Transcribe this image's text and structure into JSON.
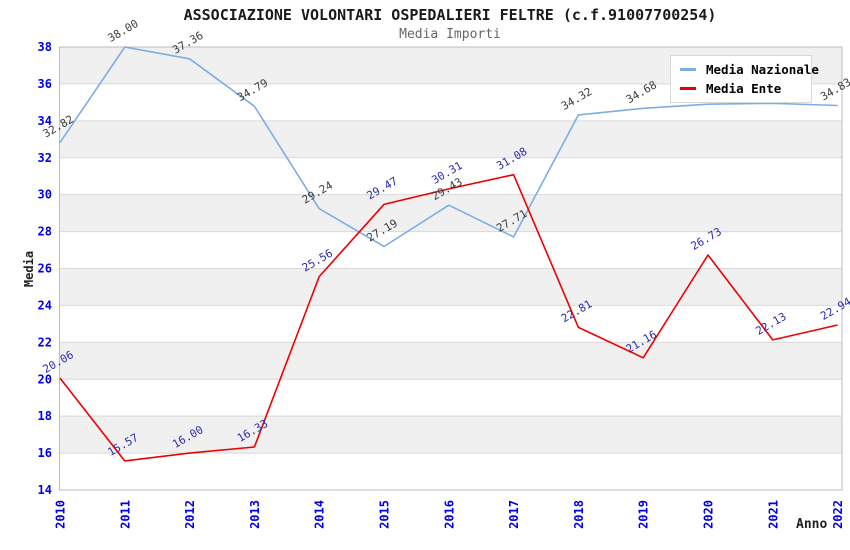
{
  "header": {
    "title": "ASSOCIAZIONE VOLONTARI OSPEDALIERI FELTRE (c.f.91007700254)",
    "subtitle": "Media Importi"
  },
  "axes": {
    "x_label": "Anno",
    "y_label": "Media",
    "x_tick_labels": [
      "2010",
      "2011",
      "2012",
      "2013",
      "2014",
      "2015",
      "2016",
      "2017",
      "2018",
      "2019",
      "2020",
      "2021",
      "2022"
    ],
    "y_tick_labels": [
      "14",
      "16",
      "18",
      "20",
      "22",
      "24",
      "26",
      "28",
      "30",
      "32",
      "34",
      "36",
      "38"
    ],
    "tick_color": "#0000EE"
  },
  "legend": {
    "position": "top-right",
    "items": [
      {
        "label": "Media Nazionale",
        "color": "#7CAEE4"
      },
      {
        "label": "Media Ente",
        "color": "#EE0000"
      }
    ]
  },
  "chart_data": {
    "type": "line",
    "title": "ASSOCIAZIONE VOLONTARI OSPEDALIERI FELTRE (c.f.91007700254)",
    "subtitle": "Media Importi",
    "xlabel": "Anno",
    "ylabel": "Media",
    "x": [
      2010,
      2011,
      2012,
      2013,
      2014,
      2015,
      2016,
      2017,
      2018,
      2019,
      2020,
      2021,
      2022
    ],
    "ylim": [
      14,
      38
    ],
    "ytick_step": 2,
    "grid": true,
    "banded_background": true,
    "legend_position": "top-right",
    "series": [
      {
        "name": "Media Nazionale",
        "color": "#7CAEE4",
        "label_color": "#3C3C3C",
        "values": [
          32.82,
          38.0,
          37.36,
          34.79,
          29.24,
          27.19,
          29.43,
          27.71,
          34.32,
          34.68,
          34.9,
          34.95,
          34.83
        ],
        "point_labels": [
          "32.82",
          "38.00",
          "37.36",
          "34.79",
          "29.24",
          "27.19",
          "29.43",
          "27.71",
          "34.32",
          "34.68",
          "",
          "",
          "34.83"
        ]
      },
      {
        "name": "Media Ente",
        "color": "#EE0000",
        "label_color": "#2B2BB0",
        "values": [
          20.06,
          15.57,
          16.0,
          16.33,
          25.56,
          29.47,
          30.31,
          31.08,
          22.81,
          21.16,
          26.73,
          22.13,
          22.94
        ],
        "point_labels": [
          "20.06",
          "15.57",
          "16.00",
          "16.33",
          "25.56",
          "29.47",
          "30.31",
          "31.08",
          "22.81",
          "21.16",
          "26.73",
          "22.13",
          "22.94"
        ]
      }
    ]
  },
  "style_colors": {
    "background": "#FFFFFF",
    "band_fill": "#F0F0F0",
    "gridline": "#D9D9D9",
    "plot_border": "#BDBDBD",
    "title_color": "#1A1A1A",
    "subtitle_color": "#666666"
  }
}
